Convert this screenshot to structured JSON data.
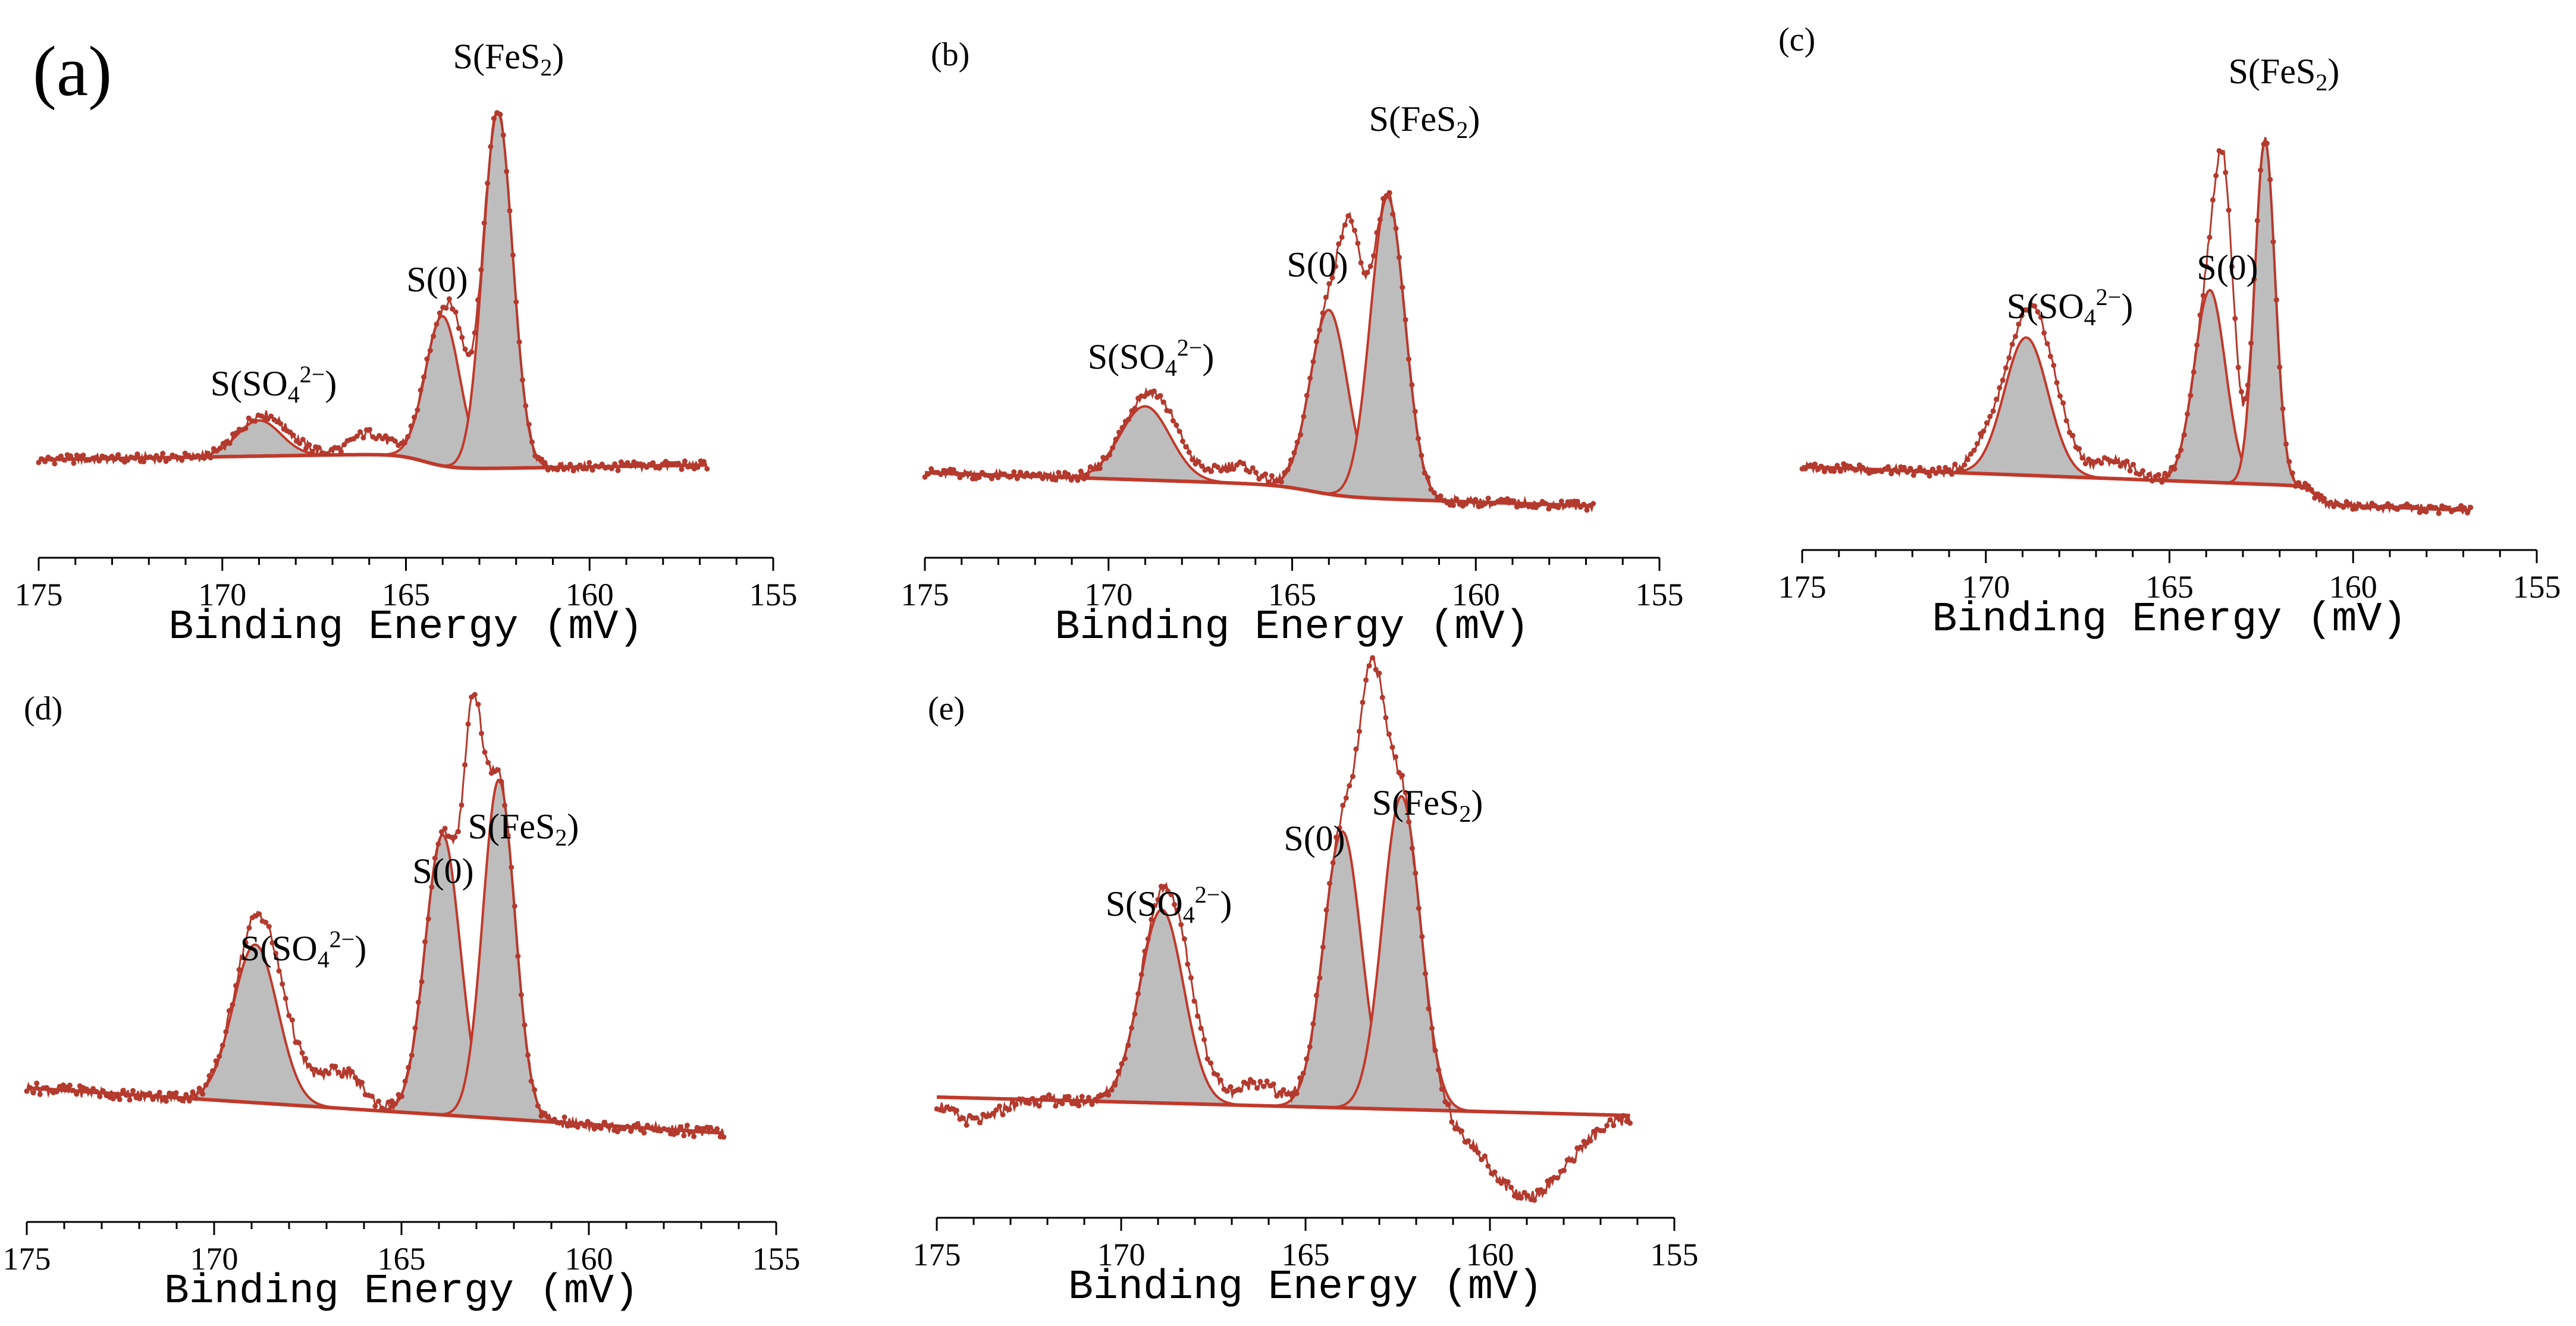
{
  "figure": {
    "colors": {
      "data": "#b33a2e",
      "fit": "#c0392b",
      "fill": "#bdbdbd",
      "axis": "#000000"
    }
  },
  "chart_data": [
    {
      "id": "a",
      "type": "line",
      "panel_label": "(a)",
      "xlabel": "Binding Energy (mV)",
      "ylabel": "",
      "xlim": [
        175,
        155
      ],
      "x_reversed": true,
      "xticks": [
        175,
        170,
        165,
        160,
        155
      ],
      "xtick_labels": [
        "175",
        "170",
        "165",
        "160",
        "155"
      ],
      "x_range": [
        175,
        156.8
      ],
      "baseline": {
        "start": 0.02,
        "end": 0.05,
        "step_center": 164.5,
        "step_width": 1.5,
        "step_amp": 0.045
      },
      "components": [
        {
          "name": "S(SO₄²⁻)",
          "label": {
            "main": "S(SO",
            "sub": "4",
            "sup": "2−",
            "close": ")"
          },
          "center": 169.0,
          "fwhm": 1.4,
          "height": 0.1
        },
        {
          "name": "S(0)",
          "label": {
            "main": "S(0)"
          },
          "center": 164.0,
          "fwhm": 1.1,
          "height": 0.42
        },
        {
          "name": "S(FeS₂)",
          "label": {
            "main": "S(FeS",
            "sub": "2",
            "close": ")"
          },
          "center": 162.5,
          "fwhm": 0.95,
          "height": 1.0
        }
      ],
      "envelope_offsets": [
        {
          "center": 168.3,
          "fwhm": 1.4,
          "height": 0.03
        },
        {
          "center": 166.0,
          "fwhm": 1.2,
          "height": 0.06
        },
        {
          "center": 163.6,
          "fwhm": 0.55,
          "height": 0.1
        }
      ]
    },
    {
      "id": "b",
      "type": "line",
      "panel_label": "(b)",
      "xlabel": "Binding Energy (mV)",
      "ylabel": "",
      "xlim": [
        175,
        155
      ],
      "x_reversed": true,
      "xticks": [
        175,
        170,
        165,
        160,
        155
      ],
      "xtick_labels": [
        "175",
        "170",
        "165",
        "160",
        "155"
      ],
      "x_range": [
        175,
        156.8
      ],
      "baseline": {
        "start": 0.0,
        "end": -0.06,
        "step_center": 164.5,
        "step_width": 2.0,
        "step_amp": 0.03
      },
      "components": [
        {
          "name": "S(SO₄²⁻)",
          "label": {
            "main": "S(SO",
            "sub": "4",
            "sup": "2−",
            "close": ")"
          },
          "center": 169.0,
          "fwhm": 1.6,
          "height": 0.2
        },
        {
          "name": "S(0)",
          "label": {
            "main": "S(0)"
          },
          "center": 164.0,
          "fwhm": 1.2,
          "height": 0.5
        },
        {
          "name": "S(FeS₂)",
          "label": {
            "main": "S(FeS",
            "sub": "2",
            "close": ")"
          },
          "center": 162.4,
          "fwhm": 1.1,
          "height": 0.82
        }
      ],
      "envelope_offsets": [
        {
          "center": 168.4,
          "fwhm": 1.4,
          "height": 0.06
        },
        {
          "center": 166.5,
          "fwhm": 1.2,
          "height": 0.05
        },
        {
          "center": 163.4,
          "fwhm": 0.7,
          "height": 0.42
        }
      ]
    },
    {
      "id": "c",
      "type": "line",
      "panel_label": "(c)",
      "xlabel": "Binding Energy (mV)",
      "ylabel": "",
      "xlim": [
        175,
        155
      ],
      "x_reversed": true,
      "xticks": [
        175,
        170,
        165,
        160,
        155
      ],
      "xtick_labels": [
        "175",
        "170",
        "165",
        "160",
        "155"
      ],
      "x_range": [
        175,
        156.8
      ],
      "baseline": {
        "start": 0.0,
        "end": -0.07,
        "step_center": 161.0,
        "step_width": 0.6,
        "step_amp": 0.05
      },
      "components": [
        {
          "name": "S(SO₄²⁻)",
          "label": {
            "main": "S(SO",
            "sub": "4",
            "sup": "2−",
            "close": ")"
          },
          "center": 168.9,
          "fwhm": 1.4,
          "height": 0.38
        },
        {
          "name": "S(0)",
          "label": {
            "main": "S(0)"
          },
          "center": 163.9,
          "fwhm": 1.0,
          "height": 0.53
        },
        {
          "name": "S(FeS₂)",
          "label": {
            "main": "S(FeS",
            "sub": "2",
            "close": ")"
          },
          "center": 162.4,
          "fwhm": 0.65,
          "height": 0.95
        }
      ],
      "envelope_offsets": [
        {
          "center": 168.3,
          "fwhm": 1.3,
          "height": 0.13
        },
        {
          "center": 170.0,
          "fwhm": 1.0,
          "height": 0.06
        },
        {
          "center": 166.5,
          "fwhm": 1.2,
          "height": 0.05
        },
        {
          "center": 163.5,
          "fwhm": 0.6,
          "height": 0.55
        }
      ]
    },
    {
      "id": "d",
      "type": "line",
      "panel_label": "(d)",
      "xlabel": "Binding Energy (mV)",
      "ylabel": "",
      "xlim": [
        175,
        155
      ],
      "x_reversed": true,
      "xticks": [
        175,
        170,
        165,
        160,
        155
      ],
      "xtick_labels": [
        "175",
        "170",
        "165",
        "160",
        "155"
      ],
      "x_range": [
        175,
        156.4
      ],
      "baseline": {
        "start": 0.04,
        "end": -0.06,
        "step_center": 164.0,
        "step_width": 2.0,
        "step_amp": 0.0
      },
      "components": [
        {
          "name": "S(SO₄²⁻)",
          "label": {
            "main": "S(SO",
            "sub": "4",
            "sup": "2−",
            "close": ")"
          },
          "center": 168.9,
          "fwhm": 1.4,
          "height": 0.35
        },
        {
          "name": "S(0)",
          "label": {
            "main": "S(0)"
          },
          "center": 163.9,
          "fwhm": 1.1,
          "height": 0.62
        },
        {
          "name": "S(FeS₂)",
          "label": {
            "main": "S(FeS",
            "sub": "2",
            "close": ")"
          },
          "center": 162.4,
          "fwhm": 1.0,
          "height": 0.75
        }
      ],
      "envelope_offsets": [
        {
          "center": 168.3,
          "fwhm": 1.5,
          "height": 0.1
        },
        {
          "center": 166.6,
          "fwhm": 1.3,
          "height": 0.08
        },
        {
          "center": 163.1,
          "fwhm": 0.6,
          "height": 0.6
        }
      ]
    },
    {
      "id": "e",
      "type": "line",
      "panel_label": "(e)",
      "xlabel": "Binding Energy (mV)",
      "ylabel": "",
      "xlim": [
        175,
        155
      ],
      "x_reversed": true,
      "xticks": [
        175,
        170,
        165,
        160,
        155
      ],
      "xtick_labels": [
        "175",
        "170",
        "165",
        "160",
        "155"
      ],
      "x_range": [
        175,
        156.2
      ],
      "baseline": {
        "start": 0.0,
        "end": -0.04,
        "step_center": 163.0,
        "step_width": 2.0,
        "step_amp": 0.0
      },
      "components": [
        {
          "name": "S(SO₄²⁻)",
          "label": {
            "main": "S(SO",
            "sub": "4",
            "sup": "2−",
            "close": ")"
          },
          "center": 168.9,
          "fwhm": 1.4,
          "height": 0.42
        },
        {
          "name": "S(0)",
          "label": {
            "main": "S(0)"
          },
          "center": 164.0,
          "fwhm": 1.2,
          "height": 0.6
        },
        {
          "name": "S(FeS₂)",
          "label": {
            "main": "S(FeS",
            "sub": "2",
            "close": ")"
          },
          "center": 162.4,
          "fwhm": 1.2,
          "height": 0.68
        }
      ],
      "envelope_offsets": [
        {
          "center": 168.2,
          "fwhm": 1.3,
          "height": 0.1
        },
        {
          "center": 166.3,
          "fwhm": 1.2,
          "height": 0.05
        },
        {
          "center": 163.2,
          "fwhm": 0.8,
          "height": 0.6
        },
        {
          "center": 159.0,
          "fwhm": 2.6,
          "height": -0.18
        },
        {
          "center": 174.0,
          "fwhm": 1.5,
          "height": -0.05
        }
      ]
    }
  ]
}
